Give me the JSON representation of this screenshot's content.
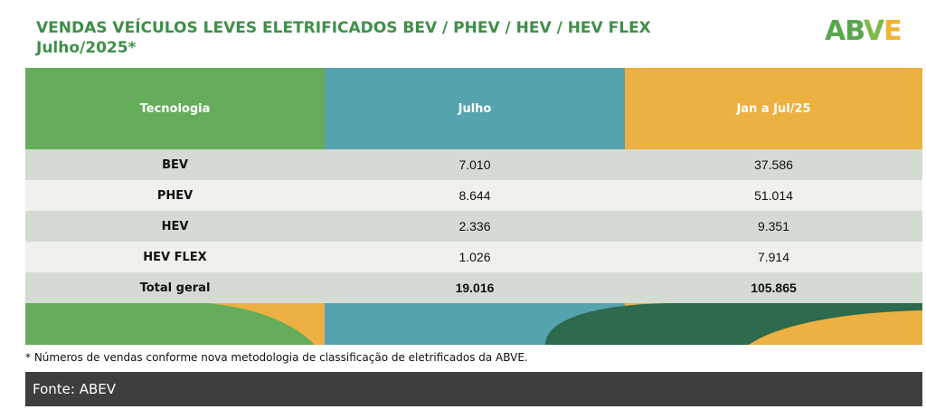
{
  "title_line1": "VENDAS VEÍCULOS LEVES ELETRIFICADOS BEV / PHEV / HEV / HEV FLEX",
  "title_line2": "Julho/2025*",
  "logo": {
    "part1": "AB",
    "part2": "V",
    "part3": "E"
  },
  "table": {
    "headers": [
      "Tecnologia",
      "Julho",
      "Jan a Jul/25"
    ],
    "rows": [
      {
        "tecnologia": "BEV",
        "julho": "7.010",
        "jan_jul": "37.586"
      },
      {
        "tecnologia": "PHEV",
        "julho": "8.644",
        "jan_jul": "51.014"
      },
      {
        "tecnologia": "HEV",
        "julho": "2.336",
        "jan_jul": "9.351"
      },
      {
        "tecnologia": "HEV FLEX",
        "julho": "1.026",
        "jan_jul": "7.914"
      },
      {
        "tecnologia": "Total geral",
        "julho": "19.016",
        "jan_jul": "105.865"
      }
    ]
  },
  "note": "* Números de vendas conforme nova metodologia de classificação de eletrificados da ABVE.",
  "source": "Fonte: ABEV",
  "colors": {
    "title_green": "#3d8f48",
    "header_green": "#66ad5b",
    "header_teal": "#56a3b0",
    "header_orange": "#edb042",
    "dark_green": "#2e6a4d",
    "source_bg": "#3f3d3e"
  }
}
